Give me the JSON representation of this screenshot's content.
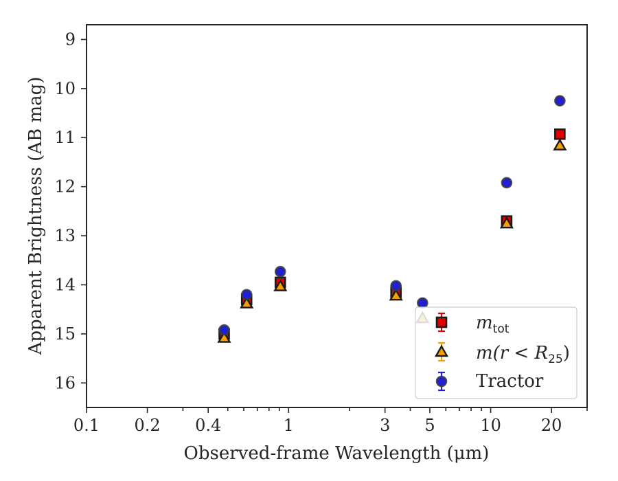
{
  "chart_data": {
    "type": "scatter",
    "xlabel": "Observed-frame Wavelength (μm)",
    "ylabel": "Apparent Brightness (AB mag)",
    "x_scale": "log",
    "xlim": [
      0.1,
      30
    ],
    "ylim": [
      16.5,
      8.7
    ],
    "y_inverted": true,
    "x_ticks": [
      {
        "value": 0.1,
        "label": "0.1"
      },
      {
        "value": 0.2,
        "label": "0.2"
      },
      {
        "value": 0.4,
        "label": "0.4"
      },
      {
        "value": 1,
        "label": "1"
      },
      {
        "value": 3,
        "label": "3"
      },
      {
        "value": 5,
        "label": "5"
      },
      {
        "value": 10,
        "label": "10"
      },
      {
        "value": 20,
        "label": "20"
      }
    ],
    "x_minor_ticks": [
      0.3,
      0.5,
      0.6,
      0.7,
      0.8,
      0.9,
      2,
      4,
      6,
      7,
      8,
      9,
      30
    ],
    "y_ticks": [
      {
        "value": 9,
        "label": "9"
      },
      {
        "value": 10,
        "label": "10"
      },
      {
        "value": 11,
        "label": "11"
      },
      {
        "value": 12,
        "label": "12"
      },
      {
        "value": 13,
        "label": "13"
      },
      {
        "value": 14,
        "label": "14"
      },
      {
        "value": 15,
        "label": "15"
      },
      {
        "value": 16,
        "label": "16"
      }
    ],
    "legend": {
      "position": "lower-right",
      "entries": [
        {
          "label_main": "m",
          "label_sub": "tot",
          "label_rest": ""
        },
        {
          "label_main": "m(r < R",
          "label_sub": "25",
          "label_rest": ")"
        },
        {
          "label_main": "Tractor",
          "label_sub": "",
          "label_rest": ""
        }
      ]
    },
    "series": [
      {
        "name": "m_tot",
        "marker": "square",
        "color": "#e00000",
        "edge": "#1a1a1a",
        "x": [
          0.48,
          0.62,
          0.91,
          3.4,
          12.0,
          22.0
        ],
        "y": [
          15.0,
          14.3,
          13.95,
          14.15,
          12.7,
          10.93
        ]
      },
      {
        "name": "m(r<R25)",
        "marker": "triangle",
        "color": "#f5a000",
        "edge": "#1a1a1a",
        "x": [
          0.48,
          0.62,
          0.91,
          3.4,
          4.6,
          12.0,
          22.0
        ],
        "y": [
          15.08,
          14.38,
          14.03,
          14.22,
          14.68,
          12.75,
          11.16
        ]
      },
      {
        "name": "Tractor",
        "marker": "circle",
        "color": "#1f1fd6",
        "edge": "#3a3a3a",
        "x": [
          0.48,
          0.62,
          0.91,
          3.4,
          4.6,
          12.0,
          22.0
        ],
        "y": [
          14.92,
          14.2,
          13.73,
          14.02,
          14.37,
          11.92,
          10.25
        ]
      }
    ]
  }
}
